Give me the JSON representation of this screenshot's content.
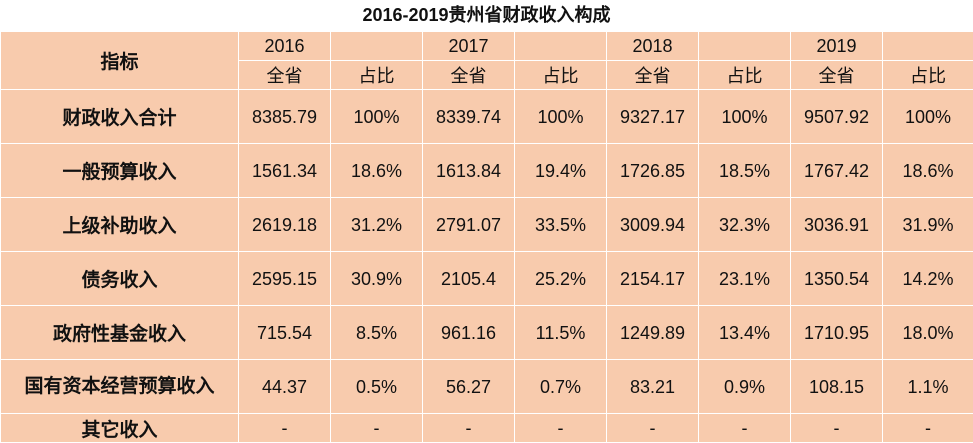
{
  "title": "2016-2019贵州省财政收入构成",
  "header": {
    "indicator": "指标",
    "years": [
      "2016",
      "2017",
      "2018",
      "2019"
    ],
    "sub": [
      "全省",
      "占比"
    ]
  },
  "rows": [
    {
      "label": "财政收入合计",
      "cells": [
        "8385.79",
        "100%",
        "8339.74",
        "100%",
        "9327.17",
        "100%",
        "9507.92",
        "100%"
      ]
    },
    {
      "label": "一般预算收入",
      "cells": [
        "1561.34",
        "18.6%",
        "1613.84",
        "19.4%",
        "1726.85",
        "18.5%",
        "1767.42",
        "18.6%"
      ]
    },
    {
      "label": "上级补助收入",
      "cells": [
        "2619.18",
        "31.2%",
        "2791.07",
        "33.5%",
        "3009.94",
        "32.3%",
        "3036.91",
        "31.9%"
      ]
    },
    {
      "label": "债务收入",
      "cells": [
        "2595.15",
        "30.9%",
        "2105.4",
        "25.2%",
        "2154.17",
        "23.1%",
        "1350.54",
        "14.2%"
      ]
    },
    {
      "label": "政府性基金收入",
      "cells": [
        "715.54",
        "8.5%",
        "961.16",
        "11.5%",
        "1249.89",
        "13.4%",
        "1710.95",
        "18.0%"
      ]
    },
    {
      "label": "国有资本经营预算收入",
      "cells": [
        "44.37",
        "0.5%",
        "56.27",
        "0.7%",
        "83.21",
        "0.9%",
        "108.15",
        "1.1%"
      ]
    },
    {
      "label": "其它收入",
      "cells": [
        "-",
        "-",
        "-",
        "-",
        "-",
        "-",
        "-",
        "-"
      ]
    }
  ]
}
